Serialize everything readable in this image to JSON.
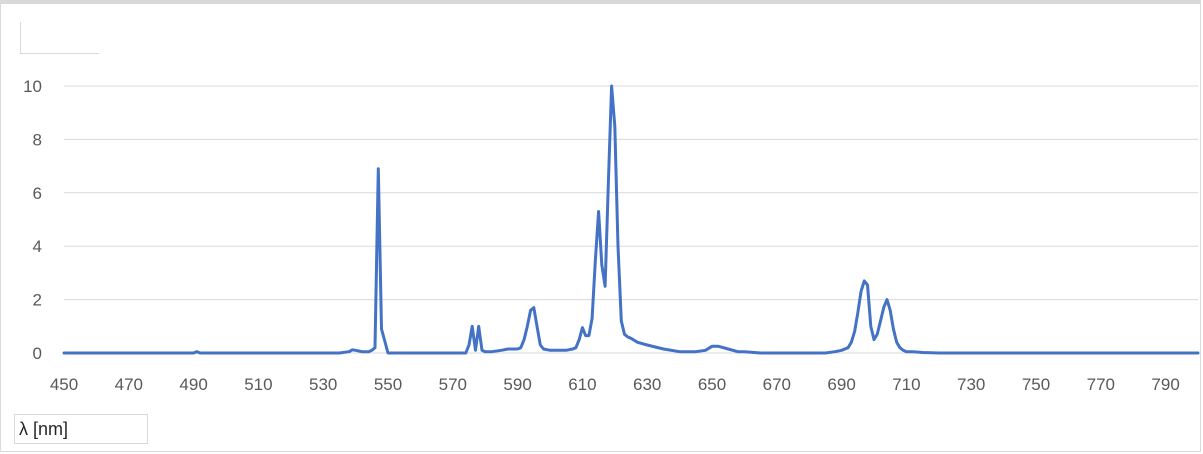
{
  "chart_data": {
    "type": "line",
    "title": "",
    "xlabel": "λ [nm]",
    "ylabel": "",
    "xlim": [
      450,
      800
    ],
    "ylim": [
      0,
      10
    ],
    "x_ticks": [
      450,
      470,
      490,
      510,
      530,
      550,
      570,
      590,
      610,
      630,
      650,
      670,
      690,
      710,
      730,
      750,
      770,
      790
    ],
    "y_ticks": [
      0,
      2,
      4,
      6,
      8,
      10
    ],
    "grid": true,
    "line_color": "#4472c4",
    "series": [
      {
        "x": [
          450,
          460,
          470,
          480,
          490,
          491,
          492,
          500,
          510,
          520,
          530,
          535,
          538,
          539,
          540,
          542,
          544,
          545,
          546,
          547,
          548,
          550,
          555,
          560,
          565,
          570,
          574,
          575,
          576,
          577,
          578,
          579,
          580,
          582,
          585,
          587,
          588,
          590,
          591,
          592,
          593,
          594,
          595,
          596,
          597,
          598,
          600,
          602,
          605,
          607,
          608,
          609,
          610,
          611,
          612,
          613,
          614,
          615,
          616,
          617,
          618,
          619,
          620,
          621,
          622,
          623,
          624,
          625,
          627,
          630,
          635,
          640,
          645,
          648,
          650,
          652,
          655,
          658,
          660,
          665,
          670,
          680,
          685,
          688,
          690,
          692,
          693,
          694,
          695,
          696,
          697,
          698,
          699,
          700,
          701,
          702,
          703,
          704,
          705,
          706,
          707,
          708,
          709,
          710,
          712,
          715,
          720,
          730,
          740,
          750,
          760,
          770,
          780,
          790,
          800
        ],
        "y": [
          0,
          0,
          0,
          0,
          0,
          0.05,
          0,
          0,
          0,
          0,
          0,
          0,
          0.05,
          0.12,
          0.1,
          0.05,
          0.05,
          0.1,
          0.2,
          6.9,
          0.9,
          0,
          0,
          0,
          0,
          0,
          0,
          0.3,
          1.0,
          0.1,
          1.0,
          0.1,
          0.05,
          0.05,
          0.1,
          0.15,
          0.15,
          0.15,
          0.2,
          0.5,
          1.0,
          1.6,
          1.7,
          1.0,
          0.3,
          0.15,
          0.1,
          0.1,
          0.1,
          0.15,
          0.2,
          0.5,
          0.95,
          0.65,
          0.65,
          1.3,
          3.5,
          5.3,
          3.3,
          2.5,
          6.3,
          10.0,
          8.5,
          4.0,
          1.2,
          0.7,
          0.6,
          0.55,
          0.4,
          0.3,
          0.15,
          0.05,
          0.05,
          0.1,
          0.25,
          0.25,
          0.15,
          0.05,
          0.05,
          0,
          0,
          0,
          0,
          0.05,
          0.1,
          0.2,
          0.4,
          0.8,
          1.5,
          2.3,
          2.7,
          2.55,
          1.0,
          0.5,
          0.7,
          1.2,
          1.7,
          2.0,
          1.6,
          0.9,
          0.4,
          0.2,
          0.1,
          0.05,
          0.05,
          0.02,
          0,
          0,
          0,
          0,
          0,
          0,
          0,
          0,
          0
        ]
      }
    ]
  }
}
